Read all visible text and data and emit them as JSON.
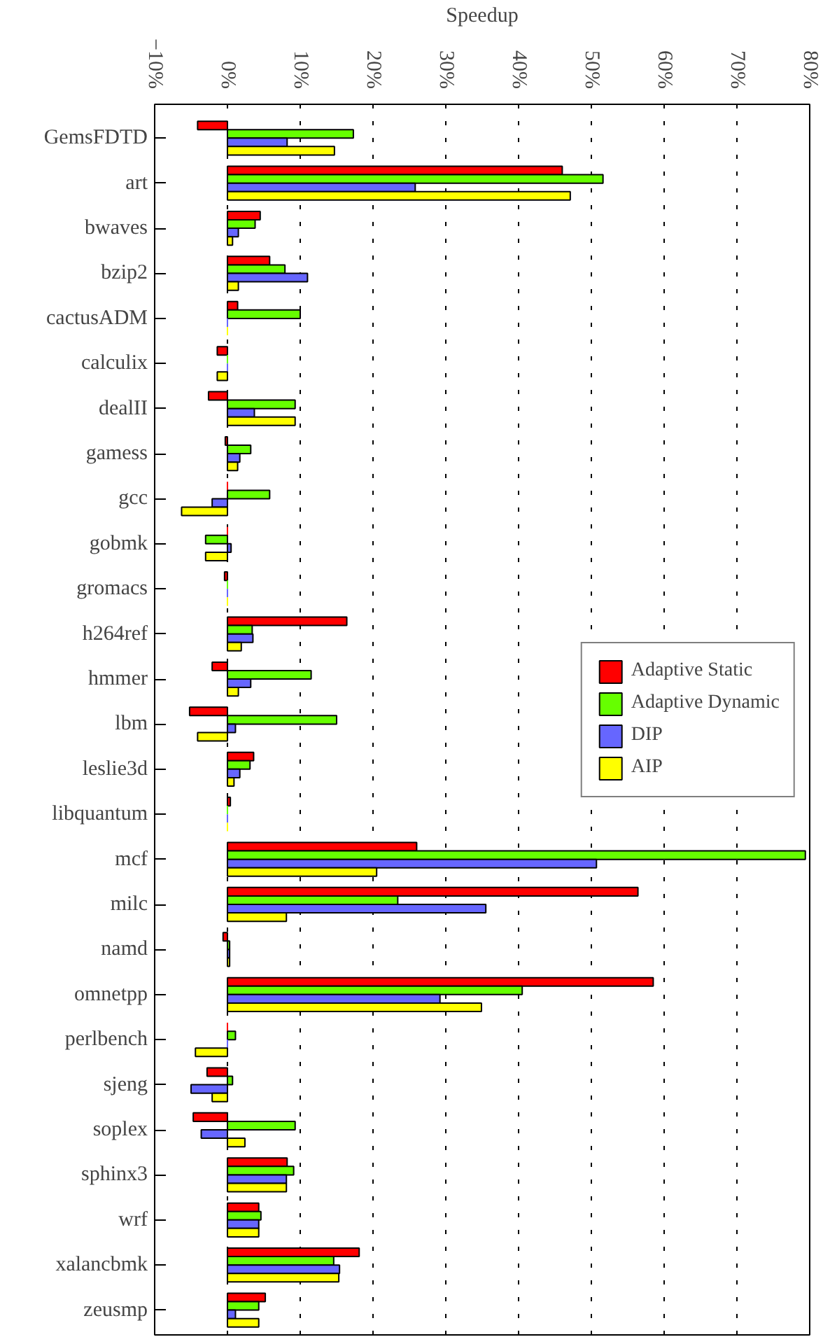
{
  "chart_data": {
    "type": "bar",
    "orientation": "horizontal",
    "xlabel": "Speedup",
    "categories": [
      "GemsFDTD",
      "art",
      "bwaves",
      "bzip2",
      "cactusADM",
      "calculix",
      "dealII",
      "gamess",
      "gcc",
      "gobmk",
      "gromacs",
      "h264ref",
      "hmmer",
      "lbm",
      "leslie3d",
      "libquantum",
      "mcf",
      "milc",
      "namd",
      "omnetpp",
      "perlbench",
      "sjeng",
      "soplex",
      "sphinx3",
      "wrf",
      "xalancbmk",
      "zeusmp"
    ],
    "series": [
      {
        "name": "Adaptive Static",
        "color": "#ff0000",
        "values": [
          -4.1,
          46.0,
          4.5,
          5.8,
          1.4,
          -1.4,
          -2.6,
          -0.3,
          0,
          0,
          -0.4,
          16.4,
          -2.1,
          -5.2,
          3.6,
          0.4,
          26.0,
          56.4,
          -0.6,
          58.5,
          0,
          -2.8,
          -4.7,
          8.2,
          4.3,
          18.1,
          5.2
        ]
      },
      {
        "name": "Adaptive Dynamic",
        "color": "#66ff00",
        "values": [
          17.3,
          51.6,
          3.8,
          7.9,
          10.0,
          0,
          9.3,
          3.2,
          5.8,
          -3.0,
          0,
          3.4,
          11.5,
          15.0,
          3.1,
          0,
          79.4,
          23.4,
          0.3,
          40.5,
          1.1,
          0.7,
          9.3,
          9.1,
          4.6,
          14.6,
          4.3
        ]
      },
      {
        "name": "DIP",
        "color": "#6666ff",
        "values": [
          8.2,
          25.8,
          1.5,
          11.0,
          0,
          0,
          3.7,
          1.7,
          -2.1,
          0.5,
          0,
          3.5,
          3.2,
          1.1,
          1.7,
          0,
          50.7,
          35.5,
          0.3,
          29.2,
          0,
          -5.0,
          -3.6,
          8.1,
          4.3,
          15.4,
          1.1
        ]
      },
      {
        "name": "AIP",
        "color": "#ffff00",
        "values": [
          14.7,
          47.1,
          0.7,
          1.5,
          0,
          -1.4,
          9.3,
          1.4,
          -6.3,
          -3.0,
          0,
          1.9,
          1.5,
          -4.1,
          0.9,
          0,
          20.5,
          8.1,
          0.3,
          34.9,
          -4.4,
          -2.1,
          2.4,
          8.1,
          4.3,
          15.3,
          4.3
        ]
      }
    ],
    "xlim": [
      -10,
      80
    ],
    "xticks": [
      {
        "value": -10,
        "label": "−10%"
      },
      {
        "value": 0,
        "label": "0%"
      },
      {
        "value": 10,
        "label": "10%"
      },
      {
        "value": 20,
        "label": "20%"
      },
      {
        "value": 30,
        "label": "30%"
      },
      {
        "value": 40,
        "label": "40%"
      },
      {
        "value": 50,
        "label": "50%"
      },
      {
        "value": 60,
        "label": "60%"
      },
      {
        "value": 70,
        "label": "70%"
      },
      {
        "value": 80,
        "label": "80%"
      }
    ],
    "grid": "x",
    "legend": "right"
  }
}
